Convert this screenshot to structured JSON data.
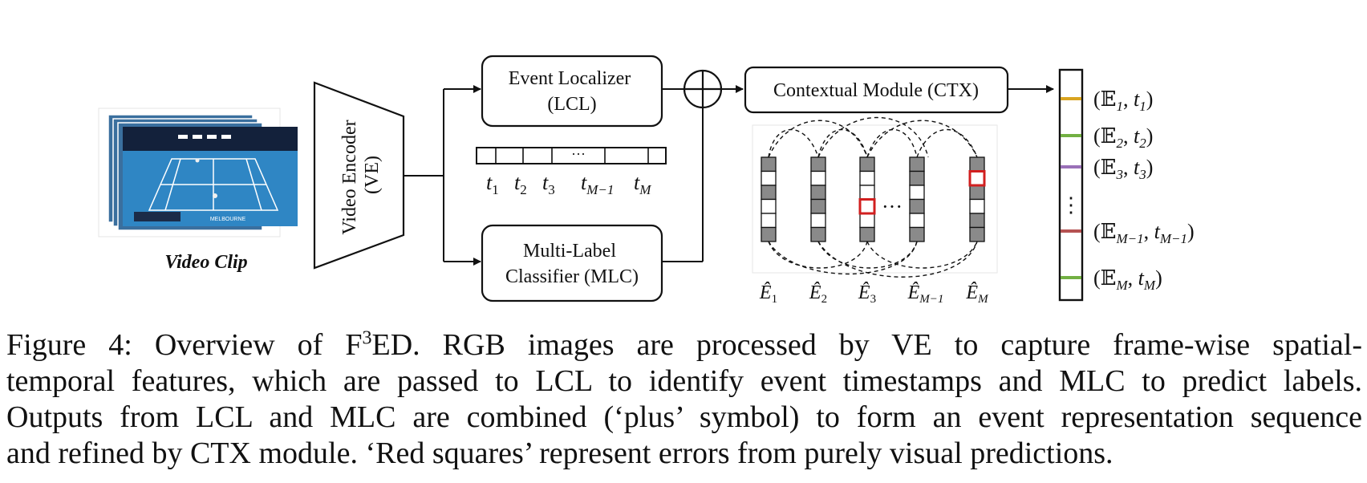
{
  "figure": {
    "video_clip_label": "Video Clip",
    "video_encoder": [
      "Video Encoder",
      "(VE)"
    ],
    "event_localizer": [
      "Event Localizer",
      "(LCL)"
    ],
    "mlc": [
      "Multi-Label",
      "Classifier (MLC)"
    ],
    "ctx": "Contextual Module (CTX)",
    "ellipsis": "···",
    "vdots": "⋮",
    "scoreboard_text": "MELBOURNE",
    "timestamps": [
      {
        "base": "t",
        "sub": "1"
      },
      {
        "base": "t",
        "sub": "2"
      },
      {
        "base": "t",
        "sub": "3"
      },
      {
        "base": "t",
        "sub": "M−1"
      },
      {
        "base": "t",
        "sub": "M"
      }
    ],
    "event_labels": [
      {
        "base": "Ê",
        "sub": "1"
      },
      {
        "base": "Ê",
        "sub": "2"
      },
      {
        "base": "Ê",
        "sub": "3"
      },
      {
        "base": "Ê",
        "sub": "M−1"
      },
      {
        "base": "Ê",
        "sub": "M"
      }
    ],
    "outputs": [
      {
        "open": "(",
        "E": "𝔼",
        "esub": "1",
        "sep": ", ",
        "t": "t",
        "tsub": "1",
        "close": ")",
        "color": "#d9a420"
      },
      {
        "open": "(",
        "E": "𝔼",
        "esub": "2",
        "sep": ", ",
        "t": "t",
        "tsub": "2",
        "close": ")",
        "color": "#72b043"
      },
      {
        "open": "(",
        "E": "𝔼",
        "esub": "3",
        "sep": ", ",
        "t": "t",
        "tsub": "3",
        "close": ")",
        "color": "#9a70b8"
      },
      {
        "open": "(",
        "E": "𝔼",
        "esub": "M−1",
        "sep": ", ",
        "t": "t",
        "tsub": "M−1",
        "close": ")",
        "color": "#b55252"
      },
      {
        "open": "(",
        "E": "𝔼",
        "esub": "M",
        "sep": ", ",
        "t": "t",
        "tsub": "M",
        "close": ")",
        "color": "#72b043"
      }
    ],
    "colors": {
      "error_red": "#d11f1f",
      "filled_gray": "#8a8a8a",
      "court_blue": "#2f86c4",
      "stands_dark": "#13213b"
    }
  },
  "caption": {
    "line1": "Figure 4: Overview of F",
    "line1_sup": "3",
    "line1_rest": "ED. RGB images are processed by VE to capture frame-wise spatial-",
    "line2": "temporal features, which are passed to LCL to identify event timestamps and MLC to predict labels.",
    "line3": "Outputs from LCL and MLC are combined (‘plus’ symbol) to form an event representation sequence",
    "line4": "and refined by CTX module. ‘Red squares’ represent errors from purely visual predictions."
  }
}
